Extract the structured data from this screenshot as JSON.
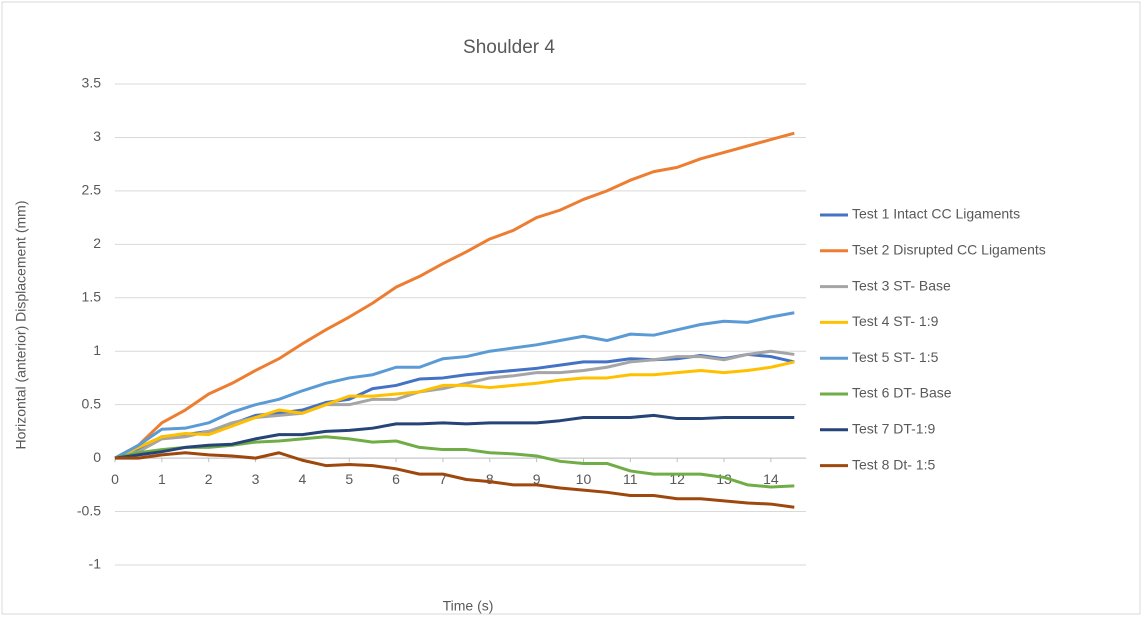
{
  "chart_data": {
    "type": "line",
    "title": "Shoulder 4",
    "x_label": "Time (s)",
    "y_label": "Horizontal (anterior) Displacement (mm)",
    "x": [
      0,
      0.5,
      1,
      1.5,
      2,
      2.5,
      3,
      3.5,
      4,
      4.5,
      5,
      5.5,
      6,
      6.5,
      7,
      7.5,
      8,
      8.5,
      9,
      9.5,
      10,
      10.5,
      11,
      11.5,
      12,
      12.5,
      13,
      13.5,
      14,
      14.5
    ],
    "xlim": [
      0,
      14.75
    ],
    "xticks": [
      0,
      1,
      2,
      3,
      4,
      5,
      6,
      7,
      8,
      9,
      10,
      11,
      12,
      13,
      14
    ],
    "ylim": [
      -1,
      3.5
    ],
    "yticks": [
      -1,
      -0.5,
      0,
      0.5,
      1,
      1.5,
      2,
      2.5,
      3,
      3.5
    ],
    "grid": true,
    "legend": "right",
    "series": [
      {
        "name": "Test 1 Intact CC Ligaments",
        "color": "#4472c4",
        "values": [
          0,
          0.08,
          0.2,
          0.22,
          0.25,
          0.32,
          0.4,
          0.42,
          0.45,
          0.52,
          0.55,
          0.65,
          0.68,
          0.74,
          0.75,
          0.78,
          0.8,
          0.82,
          0.84,
          0.87,
          0.9,
          0.9,
          0.93,
          0.92,
          0.93,
          0.96,
          0.93,
          0.97,
          0.95,
          0.9
        ]
      },
      {
        "name": "Tset 2 Disrupted CC Ligaments",
        "color": "#ed7d31",
        "values": [
          0,
          0.12,
          0.33,
          0.45,
          0.6,
          0.7,
          0.82,
          0.93,
          1.07,
          1.2,
          1.32,
          1.45,
          1.6,
          1.7,
          1.82,
          1.93,
          2.05,
          2.13,
          2.25,
          2.32,
          2.42,
          2.5,
          2.6,
          2.68,
          2.72,
          2.8,
          2.86,
          2.92,
          2.98,
          3.04
        ]
      },
      {
        "name": "Test 3 ST- Base",
        "color": "#a5a5a5",
        "values": [
          0,
          0.06,
          0.18,
          0.2,
          0.25,
          0.33,
          0.38,
          0.4,
          0.42,
          0.5,
          0.5,
          0.55,
          0.55,
          0.62,
          0.65,
          0.7,
          0.75,
          0.77,
          0.8,
          0.8,
          0.82,
          0.85,
          0.9,
          0.92,
          0.95,
          0.95,
          0.92,
          0.97,
          1.0,
          0.97
        ]
      },
      {
        "name": "Test 4 ST- 1:9",
        "color": "#ffc000",
        "values": [
          0,
          0.1,
          0.2,
          0.23,
          0.22,
          0.3,
          0.38,
          0.45,
          0.42,
          0.5,
          0.58,
          0.58,
          0.6,
          0.62,
          0.68,
          0.68,
          0.66,
          0.68,
          0.7,
          0.73,
          0.75,
          0.75,
          0.78,
          0.78,
          0.8,
          0.82,
          0.8,
          0.82,
          0.85,
          0.9
        ]
      },
      {
        "name": "Test 5 ST- 1:5",
        "color": "#5b9bd5",
        "values": [
          0,
          0.12,
          0.27,
          0.28,
          0.33,
          0.43,
          0.5,
          0.55,
          0.63,
          0.7,
          0.75,
          0.78,
          0.85,
          0.85,
          0.93,
          0.95,
          1.0,
          1.03,
          1.06,
          1.1,
          1.14,
          1.1,
          1.16,
          1.15,
          1.2,
          1.25,
          1.28,
          1.27,
          1.32,
          1.36
        ]
      },
      {
        "name": "Test 6 DT- Base",
        "color": "#70ad47",
        "values": [
          0,
          0.05,
          0.08,
          0.1,
          0.1,
          0.12,
          0.15,
          0.16,
          0.18,
          0.2,
          0.18,
          0.15,
          0.16,
          0.1,
          0.08,
          0.08,
          0.05,
          0.04,
          0.02,
          -0.03,
          -0.05,
          -0.05,
          -0.12,
          -0.15,
          -0.15,
          -0.15,
          -0.18,
          -0.25,
          -0.27,
          -0.26
        ]
      },
      {
        "name": "Test 7 DT-1:9",
        "color": "#264478",
        "values": [
          0,
          0.03,
          0.06,
          0.1,
          0.12,
          0.13,
          0.18,
          0.22,
          0.22,
          0.25,
          0.26,
          0.28,
          0.32,
          0.32,
          0.33,
          0.32,
          0.33,
          0.33,
          0.33,
          0.35,
          0.38,
          0.38,
          0.38,
          0.4,
          0.37,
          0.37,
          0.38,
          0.38,
          0.38,
          0.38
        ]
      },
      {
        "name": "Test 8 Dt- 1:5",
        "color": "#9e480e",
        "values": [
          0,
          0,
          0.03,
          0.05,
          0.03,
          0.02,
          0,
          0.05,
          -0.02,
          -0.07,
          -0.06,
          -0.07,
          -0.1,
          -0.15,
          -0.15,
          -0.2,
          -0.22,
          -0.25,
          -0.25,
          -0.28,
          -0.3,
          -0.32,
          -0.35,
          -0.35,
          -0.38,
          -0.38,
          -0.4,
          -0.42,
          -0.43,
          -0.46
        ]
      }
    ]
  }
}
